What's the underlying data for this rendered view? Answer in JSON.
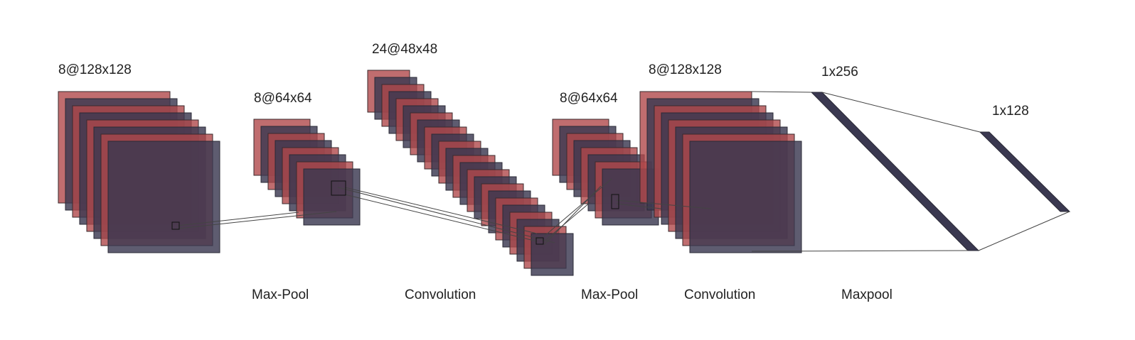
{
  "colors": {
    "red_fill": "#b0484b",
    "red_stroke": "#3a2a2e",
    "dark_fill": "#3a3850",
    "dark_stroke": "#2a2a36",
    "line": "#444444"
  },
  "layers": [
    {
      "id": "conv1",
      "dim_label": "8@128x128"
    },
    {
      "id": "pool1",
      "dim_label": "8@64x64"
    },
    {
      "id": "conv2",
      "dim_label": "24@48x48"
    },
    {
      "id": "pool2",
      "dim_label": "8@64x64"
    },
    {
      "id": "conv3",
      "dim_label": "8@128x128"
    },
    {
      "id": "fc1",
      "dim_label": "1x256"
    },
    {
      "id": "fc2",
      "dim_label": "1x128"
    }
  ],
  "operations": [
    {
      "id": "op1",
      "label": "Max-Pool"
    },
    {
      "id": "op2",
      "label": "Convolution"
    },
    {
      "id": "op3",
      "label": "Max-Pool"
    },
    {
      "id": "op4",
      "label": "Convolution"
    },
    {
      "id": "op5",
      "label": "Maxpool"
    }
  ]
}
